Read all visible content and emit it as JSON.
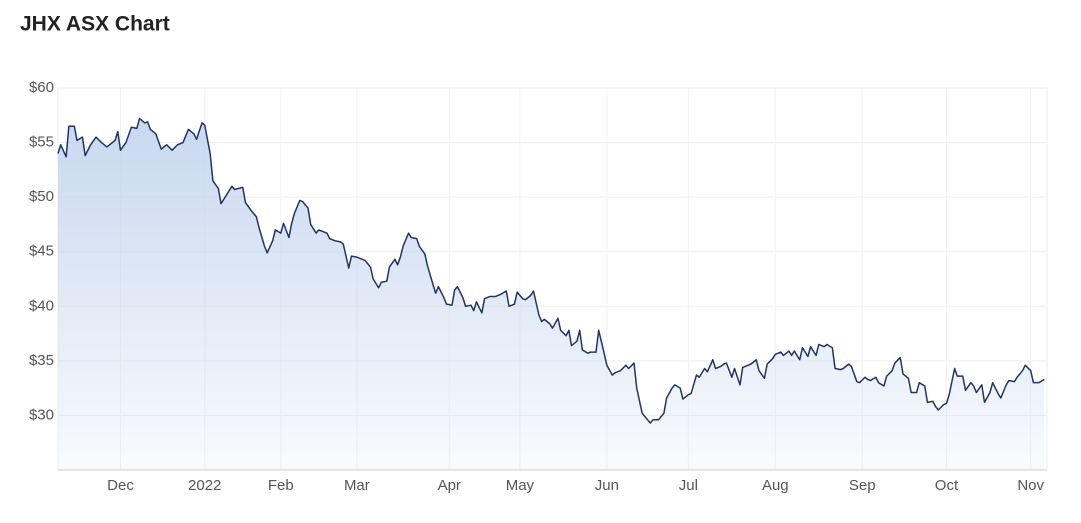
{
  "chart_data": {
    "type": "area",
    "title": "JHX ASX Chart",
    "color": "#1f3468",
    "fill": "#c5d6ee",
    "grid": true,
    "x": [
      -54,
      -53,
      -51,
      -50,
      -48,
      -47,
      -45,
      -44,
      -42,
      -40,
      -38,
      -36,
      -33,
      -32,
      -31,
      -29,
      -27,
      -25,
      -24,
      -22,
      -21,
      -20,
      -18,
      -16,
      -14,
      -12,
      -10,
      -8,
      -6,
      -4,
      -3,
      -1,
      0,
      2,
      3,
      5,
      6,
      8,
      10,
      11,
      14,
      15,
      17,
      19,
      20,
      22,
      23,
      25,
      26,
      28,
      29,
      31,
      32,
      33,
      35,
      36,
      38,
      39,
      41,
      42,
      45,
      46,
      48,
      50,
      51,
      53,
      54,
      56,
      59,
      61,
      62,
      64,
      65,
      67,
      68,
      70,
      71,
      72,
      73,
      75,
      76,
      78,
      79,
      81,
      82,
      84,
      85,
      86,
      88,
      89,
      91,
      92,
      93,
      95,
      96,
      98,
      99,
      100,
      102,
      103,
      105,
      107,
      109,
      111,
      112,
      114,
      115,
      117,
      118,
      120,
      121,
      123,
      124,
      125,
      127,
      128,
      130,
      131,
      133,
      134,
      135,
      137,
      138,
      139,
      141,
      142,
      144,
      145,
      147,
      148,
      150,
      151,
      153,
      155,
      156,
      158,
      159,
      161,
      162,
      164,
      165,
      167,
      169,
      170,
      172,
      173,
      175,
      176,
      178,
      179,
      181,
      182,
      184,
      185,
      187,
      188,
      190,
      191,
      192,
      194,
      195,
      197,
      198,
      200,
      201,
      203,
      204,
      206,
      207,
      209,
      210,
      212,
      213,
      215,
      216,
      217,
      219,
      220,
      222,
      223,
      225,
      226,
      228,
      229,
      231,
      232,
      234,
      235,
      237,
      238,
      240,
      241,
      243,
      244,
      245,
      247,
      248,
      250,
      251,
      253,
      254,
      256,
      257,
      259,
      260,
      262,
      263,
      265,
      266,
      268,
      269,
      270,
      272,
      273,
      274,
      276,
      277,
      279,
      280,
      282,
      283,
      284,
      286,
      287,
      289,
      290,
      292,
      293,
      295,
      296,
      298,
      299,
      301,
      302,
      304,
      305,
      307,
      309
    ],
    "values": [
      54,
      54.8,
      53.7,
      56.5,
      56.5,
      55.2,
      55.5,
      53.8,
      54.8,
      55.5,
      55,
      54.6,
      55.2,
      56,
      54.3,
      55,
      56.4,
      56.3,
      57.2,
      56.8,
      56.9,
      56.2,
      55.8,
      54.4,
      54.8,
      54.3,
      54.8,
      55,
      56.2,
      55.8,
      55.3,
      56.8,
      56.6,
      54,
      51.5,
      50.8,
      49.4,
      50.2,
      51,
      50.7,
      50.9,
      49.5,
      48.8,
      48.2,
      47.2,
      45.5,
      44.9,
      46,
      47,
      46.7,
      47.6,
      46.3,
      47.6,
      48.5,
      49.7,
      49.6,
      49,
      47.5,
      46.7,
      47,
      46.7,
      46.2,
      46,
      45.9,
      45.7,
      43.5,
      44.6,
      44.5,
      44.2,
      43.6,
      42.5,
      41.7,
      42.2,
      42.3,
      43.6,
      44.3,
      43.8,
      44.5,
      45.5,
      46.7,
      46.3,
      46.2,
      45.5,
      44.8,
      43.7,
      42,
      41.2,
      41.8,
      40.8,
      40.2,
      40.1,
      41.5,
      41.8,
      40.8,
      40,
      40.1,
      39.6,
      40.4,
      39.4,
      40.7,
      40.9,
      40.9,
      41.1,
      41.4,
      40,
      40.2,
      41.3,
      40.7,
      40.6,
      41,
      41.4,
      39.2,
      38.6,
      38.8,
      38.4,
      38,
      38.9,
      37.8,
      37.3,
      37.8,
      36.4,
      36.8,
      37.8,
      36,
      35.7,
      35.8,
      35.8,
      37.8,
      35.7,
      34.6,
      33.7,
      33.9,
      34.1,
      34.6,
      34.3,
      34.8,
      32.5,
      30.2,
      29.9,
      29.3,
      29.6,
      29.6,
      30.2,
      31.6,
      32.5,
      32.8,
      32.5,
      31.5,
      31.9,
      32,
      33.7,
      33.5,
      34.3,
      34,
      35.1,
      34.3,
      34.5,
      34.7,
      34.8,
      33.5,
      34.3,
      32.8,
      34.4,
      34.6,
      34.7,
      35.1,
      34.1,
      33.4,
      34.7,
      35.2,
      35.6,
      35.8,
      35.5,
      35.9,
      35.5,
      35.9,
      35.1,
      36.2,
      35.4,
      36.3,
      35.5,
      36.5,
      36.3,
      36.5,
      36.2,
      34.3,
      34.2,
      34.3,
      34.7,
      34.5,
      33.1,
      33,
      33.5,
      33.3,
      33.2,
      33.5,
      33,
      32.7,
      33.6,
      34.1,
      34.8,
      35.3,
      33.8,
      33.4,
      32.1,
      32.1,
      33,
      32.7,
      31.2,
      31.3,
      30.8,
      30.5,
      31,
      31.1,
      31.9,
      34.3,
      33.6,
      33.6,
      32.3,
      33,
      32.7,
      32.1,
      32.8,
      31.2,
      32.1,
      33,
      32,
      31.6,
      32.8,
      33.2,
      33.1,
      33.5,
      34.1,
      34.6,
      34.1,
      33,
      33,
      33.3
    ],
    "xlim": [
      -54,
      310
    ],
    "xticks": [
      {
        "value": -31,
        "label": "Dec"
      },
      {
        "value": 0,
        "label": "2022"
      },
      {
        "value": 28,
        "label": "Feb"
      },
      {
        "value": 56,
        "label": "Mar"
      },
      {
        "value": 90,
        "label": "Apr"
      },
      {
        "value": 116,
        "label": "May"
      },
      {
        "value": 148,
        "label": "Jun"
      },
      {
        "value": 178,
        "label": "Jul"
      },
      {
        "value": 210,
        "label": "Aug"
      },
      {
        "value": 242,
        "label": "Sep"
      },
      {
        "value": 273,
        "label": "Oct"
      },
      {
        "value": 304,
        "label": "Nov"
      }
    ],
    "ylim": [
      25,
      60
    ],
    "yticks": [
      {
        "value": 30,
        "label": "$30"
      },
      {
        "value": 35,
        "label": "$35"
      },
      {
        "value": 40,
        "label": "$40"
      },
      {
        "value": 45,
        "label": "$45"
      },
      {
        "value": 50,
        "label": "$50"
      },
      {
        "value": 55,
        "label": "$55"
      },
      {
        "value": 60,
        "label": "$60"
      }
    ]
  }
}
